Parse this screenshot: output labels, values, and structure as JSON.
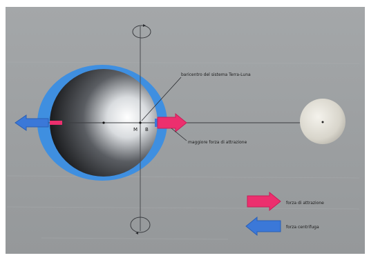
{
  "labels": {
    "barycenter": "baricentro del sistema Terra-Luna",
    "max_tide": "maggiore forza di attrazione",
    "point_m": "M",
    "point_b": "B"
  },
  "legend": {
    "attraction_label": "forza di attrazione",
    "centrifugal_label": "forza centrifuga"
  },
  "colors": {
    "background": "#9c9fa1",
    "ocean": "#3f8fe0",
    "attraction_arrow": "#ec2f6e",
    "centrifugal_arrow": "#3b78d8",
    "moon": "#dedcd3"
  }
}
